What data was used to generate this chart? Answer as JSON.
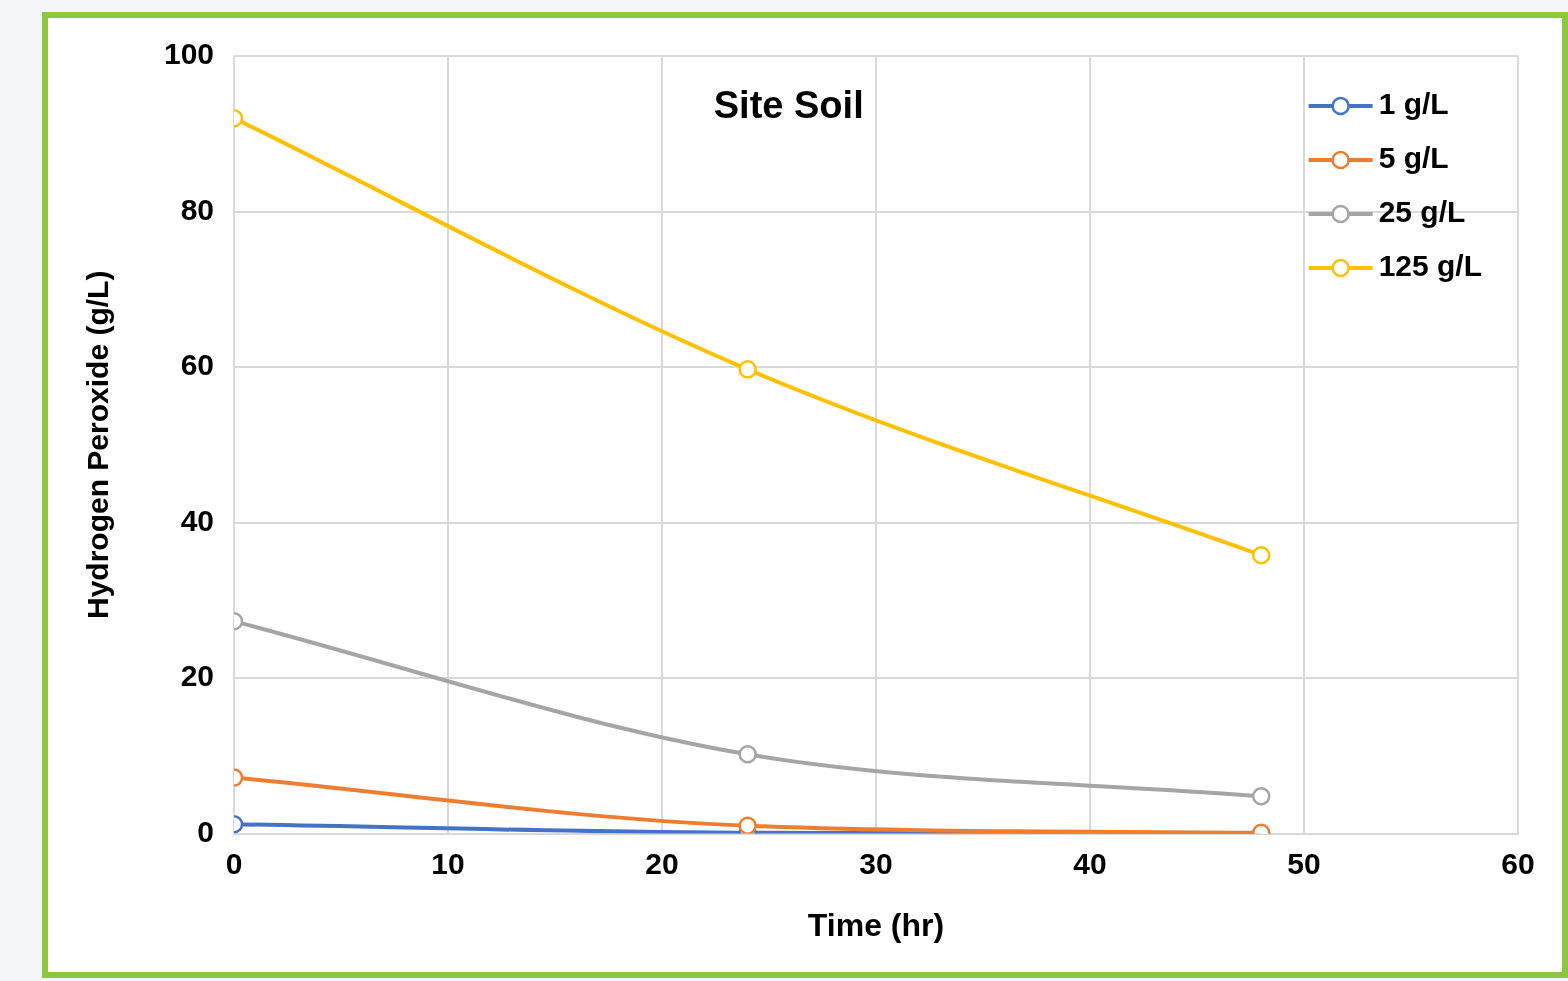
{
  "chart_data": {
    "type": "line",
    "title": "Site Soil",
    "xlabel": "Time (hr)",
    "ylabel": "Hydrogen Peroxide (g/L)",
    "x": [
      0,
      24,
      48
    ],
    "series": [
      {
        "name": "1 g/L",
        "color": "#4472c4",
        "values": [
          1.2,
          0.1,
          0
        ]
      },
      {
        "name": "5 g/L",
        "color": "#ed7d31",
        "values": [
          7.2,
          1,
          0.1
        ]
      },
      {
        "name": "25 g/L",
        "color": "#a5a5a5",
        "values": [
          27.3,
          10.2,
          4.8
        ]
      },
      {
        "name": "125 g/L",
        "color": "#ffc000",
        "values": [
          92,
          59.7,
          35.8
        ]
      }
    ],
    "xlim": [
      0,
      60
    ],
    "xticks": [
      0,
      10,
      20,
      30,
      40,
      50,
      60
    ],
    "ylim": [
      0,
      100
    ],
    "yticks": [
      0,
      20,
      40,
      60,
      80,
      100
    ],
    "grid": true,
    "legend": "top right",
    "marker": "circle",
    "line_style": "solid"
  }
}
